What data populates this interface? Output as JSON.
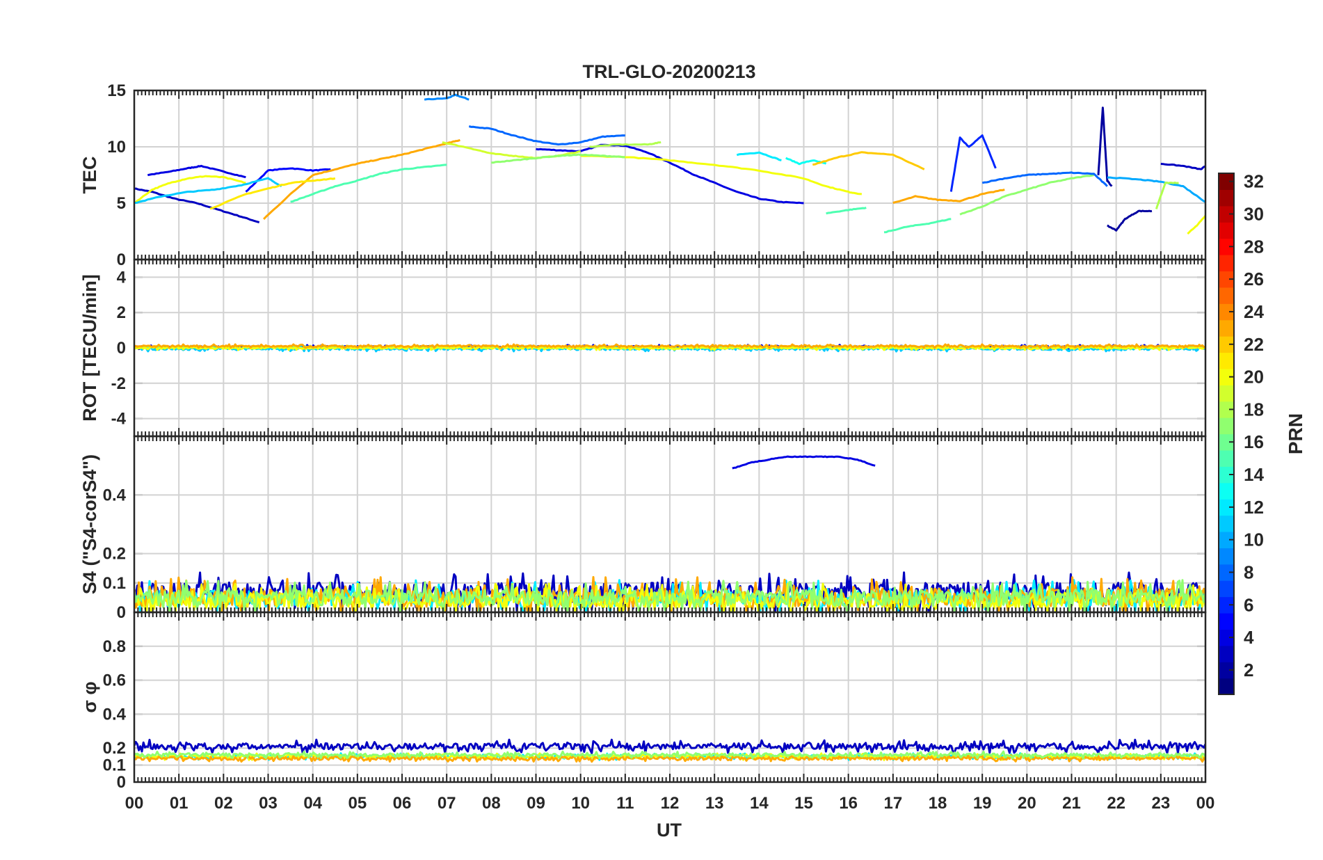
{
  "chart_data": {
    "type": "line",
    "title": "TRL-GLO-20200213",
    "xlabel": "UT",
    "x_tick_labels": [
      "00",
      "01",
      "02",
      "03",
      "04",
      "05",
      "06",
      "07",
      "08",
      "09",
      "10",
      "11",
      "12",
      "13",
      "14",
      "15",
      "16",
      "17",
      "18",
      "19",
      "20",
      "21",
      "22",
      "23",
      "00"
    ],
    "xlim": [
      0,
      24
    ],
    "grid": true,
    "colorbar": {
      "label": "PRN",
      "range": [
        1,
        32
      ],
      "ticks": [
        "2",
        "4",
        "6",
        "8",
        "10",
        "12",
        "14",
        "16",
        "18",
        "20",
        "22",
        "24",
        "26",
        "28",
        "30",
        "32"
      ],
      "colormap": "jet"
    },
    "panels": [
      {
        "name": "tec",
        "ylabel": "TEC",
        "ylim": [
          0,
          15
        ],
        "yticks": [
          "0",
          "5",
          "10",
          "15"
        ],
        "series": [
          {
            "prn": 3,
            "x": [
              0.0,
              0.4,
              0.9,
              1.4,
              1.9,
              2.4,
              2.8
            ],
            "y": [
              6.3,
              6.0,
              5.4,
              5.0,
              4.4,
              3.8,
              3.3
            ]
          },
          {
            "prn": 4,
            "x": [
              0.3,
              0.8,
              1.2,
              1.5,
              2.0,
              2.5
            ],
            "y": [
              7.5,
              7.8,
              8.1,
              8.3,
              7.8,
              7.3
            ]
          },
          {
            "prn": 5,
            "x": [
              2.5,
              3.0,
              3.5,
              4.0,
              4.4
            ],
            "y": [
              6.0,
              7.9,
              8.1,
              7.9,
              8.0
            ]
          },
          {
            "prn": 9,
            "x": [
              6.5,
              7.0,
              7.2,
              7.5
            ],
            "y": [
              14.2,
              14.3,
              14.6,
              14.2
            ]
          },
          {
            "prn": 4,
            "x": [
              9.0,
              9.5,
              10.0,
              10.5,
              11.0,
              11.5,
              12.0,
              12.5,
              13.0,
              13.5,
              14.0,
              14.5,
              15.0
            ],
            "y": [
              9.8,
              9.7,
              9.6,
              10.2,
              10.1,
              9.5,
              8.6,
              7.6,
              6.8,
              6.0,
              5.4,
              5.1,
              5.0
            ]
          },
          {
            "prn": 8,
            "x": [
              7.5,
              8.0,
              8.5,
              9.0,
              9.5,
              10.0,
              10.5,
              11.0
            ],
            "y": [
              11.8,
              11.6,
              11.0,
              10.5,
              10.2,
              10.4,
              10.9,
              11.0
            ]
          },
          {
            "prn": 6,
            "x": [
              18.3,
              18.5,
              18.7,
              19.0,
              19.3
            ],
            "y": [
              6.0,
              10.8,
              10.0,
              11.0,
              8.1
            ]
          },
          {
            "prn": 12,
            "x": [
              13.5,
              14.0,
              14.5
            ],
            "y": [
              9.3,
              9.5,
              8.8
            ]
          },
          {
            "prn": 13,
            "x": [
              14.6,
              14.9,
              15.2,
              15.5
            ],
            "y": [
              9.0,
              8.5,
              8.8,
              8.5
            ]
          },
          {
            "prn": 22,
            "x": [
              15.2,
              15.8,
              16.3,
              17.0,
              17.7
            ],
            "y": [
              8.4,
              9.1,
              9.5,
              9.3,
              8.0
            ]
          },
          {
            "prn": 23,
            "x": [
              2.9,
              3.5,
              4.0,
              4.5,
              5.0,
              5.5,
              6.0,
              6.5,
              7.0,
              7.3
            ],
            "y": [
              3.6,
              5.8,
              7.5,
              8.0,
              8.5,
              8.9,
              9.3,
              9.8,
              10.3,
              10.6
            ]
          },
          {
            "prn": 19,
            "x": [
              6.9,
              7.5,
              8.0,
              8.5,
              9.0,
              9.5,
              10.0
            ],
            "y": [
              10.4,
              9.9,
              9.4,
              9.2,
              9.0,
              9.2,
              9.6
            ]
          },
          {
            "prn": 18,
            "x": [
              10.2,
              10.8,
              11.5,
              11.8
            ],
            "y": [
              10.0,
              10.2,
              10.2,
              10.4
            ]
          },
          {
            "prn": 20,
            "x": [
              0.0,
              0.4,
              0.8,
              1.2,
              1.6,
              2.0,
              2.5
            ],
            "y": [
              5.0,
              6.2,
              6.8,
              7.2,
              7.4,
              7.3,
              6.8
            ]
          },
          {
            "prn": 20,
            "x": [
              10.0,
              11.0,
              12.0,
              13.0,
              14.0,
              15.0,
              15.5,
              16.0,
              16.3
            ],
            "y": [
              9.2,
              9.1,
              8.8,
              8.4,
              7.9,
              7.2,
              6.5,
              6.0,
              5.8
            ]
          },
          {
            "prn": 11,
            "x": [
              0.0,
              0.6,
              1.2,
              1.8,
              2.4,
              3.0,
              3.3
            ],
            "y": [
              5.0,
              5.6,
              6.0,
              6.2,
              6.6,
              7.2,
              6.5
            ]
          },
          {
            "prn": 21,
            "x": [
              1.7,
              2.5,
              3.0,
              3.5,
              4.0,
              4.5
            ],
            "y": [
              4.5,
              5.8,
              6.3,
              6.8,
              7.0,
              7.2
            ]
          },
          {
            "prn": 15,
            "x": [
              3.5,
              4.0,
              4.5,
              5.0,
              5.5,
              6.0,
              6.5,
              7.0
            ],
            "y": [
              5.1,
              5.8,
              6.5,
              7.0,
              7.6,
              8.0,
              8.2,
              8.4
            ]
          },
          {
            "prn": 17,
            "x": [
              8.0,
              8.5,
              9.0,
              9.5,
              10.0,
              10.5,
              11.0
            ],
            "y": [
              8.6,
              8.8,
              9.0,
              9.2,
              9.3,
              9.2,
              9.1
            ]
          },
          {
            "prn": 23,
            "x": [
              17.0,
              17.5,
              18.0,
              18.5,
              19.0,
              19.5
            ],
            "y": [
              5.0,
              5.6,
              5.3,
              5.2,
              5.8,
              6.2
            ]
          },
          {
            "prn": 15,
            "x": [
              16.8,
              17.3,
              17.8,
              18.3
            ],
            "y": [
              2.4,
              2.9,
              3.2,
              3.6
            ]
          },
          {
            "prn": 15,
            "x": [
              15.5,
              16.0,
              16.4
            ],
            "y": [
              4.1,
              4.4,
              4.6
            ]
          },
          {
            "prn": 17,
            "x": [
              18.5,
              19.0,
              19.5,
              20.0,
              20.5,
              21.0,
              21.5
            ],
            "y": [
              4.0,
              4.7,
              5.6,
              6.2,
              6.8,
              7.2,
              7.5
            ]
          },
          {
            "prn": 8,
            "x": [
              19.0,
              19.5,
              20.0,
              20.5,
              21.0,
              21.5,
              21.8
            ],
            "y": [
              6.8,
              7.2,
              7.5,
              7.6,
              7.7,
              7.6,
              6.5
            ]
          },
          {
            "prn": 2,
            "x": [
              21.6,
              21.7,
              21.8,
              21.9
            ],
            "y": [
              7.5,
              13.5,
              7.0,
              6.5
            ]
          },
          {
            "prn": 2,
            "x": [
              21.8,
              22.0,
              22.2,
              22.5,
              22.8
            ],
            "y": [
              3.0,
              2.6,
              3.6,
              4.3,
              4.3
            ]
          },
          {
            "prn": 3,
            "x": [
              23.0,
              23.5,
              23.9,
              24.0
            ],
            "y": [
              8.5,
              8.3,
              8.0,
              8.3
            ]
          },
          {
            "prn": 10,
            "x": [
              21.8,
              22.5,
              23.0,
              23.5,
              24.0
            ],
            "y": [
              7.3,
              7.1,
              6.9,
              6.5,
              5.1
            ]
          },
          {
            "prn": 20,
            "x": [
              23.6,
              23.8,
              24.0
            ],
            "y": [
              2.3,
              3.0,
              3.9
            ]
          },
          {
            "prn": 18,
            "x": [
              22.9,
              23.1,
              23.4
            ],
            "y": [
              4.5,
              6.8,
              6.8
            ]
          }
        ]
      },
      {
        "name": "rot",
        "ylabel": "ROT [TECU/min]",
        "ylim": [
          -5,
          5
        ],
        "yticks": [
          "-4",
          "-2",
          "0",
          "2",
          "4"
        ],
        "series": [
          {
            "prn": 4,
            "level": 0.05,
            "spread": 0.12
          },
          {
            "prn": 11,
            "level": -0.05,
            "spread": 0.15
          },
          {
            "prn": 16,
            "level": 0.02,
            "spread": 0.1
          },
          {
            "prn": 20,
            "level": 0.0,
            "spread": 0.12
          },
          {
            "prn": 23,
            "level": 0.1,
            "spread": 0.1
          }
        ]
      },
      {
        "name": "s4",
        "ylabel": "S4 (\"S4-corS4\")",
        "ylim": [
          0,
          0.6
        ],
        "yticks": [
          "0",
          "0.1",
          "0.2",
          "0.4"
        ],
        "ytick_values": [
          0,
          0.1,
          0.2,
          0.4
        ],
        "series": [
          {
            "prn": 4,
            "x": [
              13.4,
              13.8,
              14.2,
              14.6,
              15.0,
              15.4,
              15.8,
              16.2,
              16.6
            ],
            "y": [
              0.49,
              0.51,
              0.52,
              0.53,
              0.53,
              0.53,
              0.53,
              0.52,
              0.5
            ]
          },
          {
            "prn": 3,
            "level": 0.07,
            "spread": 0.07
          },
          {
            "prn": 12,
            "level": 0.05,
            "spread": 0.06
          },
          {
            "prn": 23,
            "level": 0.05,
            "spread": 0.07
          },
          {
            "prn": 20,
            "level": 0.04,
            "spread": 0.06
          },
          {
            "prn": 17,
            "level": 0.05,
            "spread": 0.06
          }
        ]
      },
      {
        "name": "sigma",
        "ylabel": "σ φ",
        "ylim": [
          0,
          1
        ],
        "yticks": [
          "0",
          "0.1",
          "0.2",
          "0.4",
          "0.6",
          "0.8"
        ],
        "ytick_values": [
          0,
          0.1,
          0.2,
          0.4,
          0.6,
          0.8
        ],
        "series": [
          {
            "prn": 3,
            "level": 0.21,
            "spread": 0.04
          },
          {
            "prn": 12,
            "level": 0.15,
            "spread": 0.02
          },
          {
            "prn": 20,
            "level": 0.15,
            "spread": 0.02
          },
          {
            "prn": 23,
            "level": 0.14,
            "spread": 0.02
          },
          {
            "prn": 17,
            "level": 0.16,
            "spread": 0.02
          }
        ]
      }
    ]
  }
}
